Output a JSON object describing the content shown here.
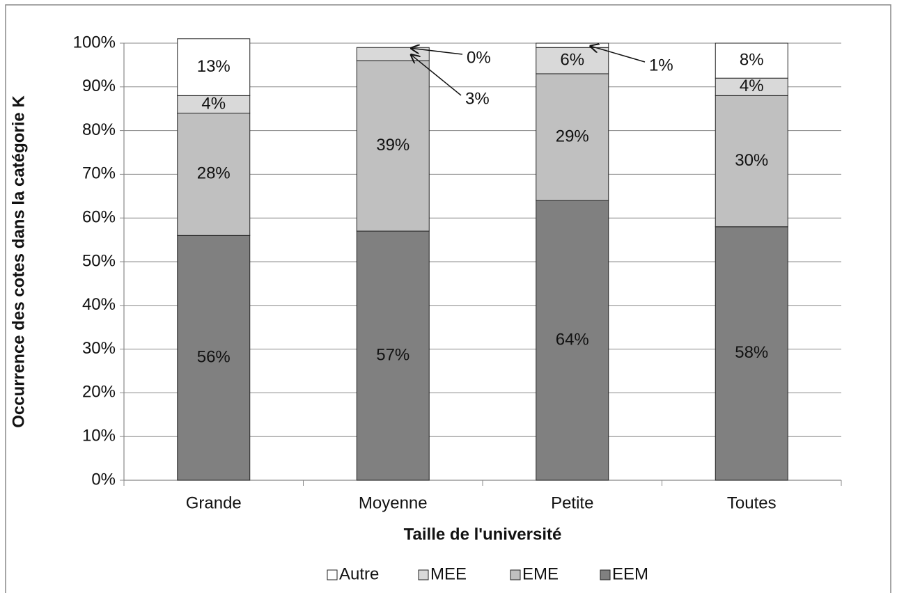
{
  "chart_data": {
    "type": "stacked_bar",
    "xlabel": "Taille de l'université",
    "ylabel": "Occurrence des cotes dans la catégorie K",
    "categories": [
      "Grande",
      "Moyenne",
      "Petite",
      "Toutes"
    ],
    "series": [
      {
        "name": "EEM",
        "color": "#808080",
        "values": [
          56,
          57,
          64,
          58
        ],
        "value_labels": [
          "56%",
          "57%",
          "64%",
          "58%"
        ]
      },
      {
        "name": "EME",
        "color": "#c0c0c0",
        "values": [
          28,
          39,
          29,
          30
        ],
        "value_labels": [
          "28%",
          "39%",
          "29%",
          "30%"
        ]
      },
      {
        "name": "MEE",
        "color": "#d9d9d9",
        "values": [
          4,
          3,
          6,
          4
        ],
        "value_labels": [
          "4%",
          "3%",
          "6%",
          "4%"
        ]
      },
      {
        "name": "Autre",
        "color": "#ffffff",
        "values": [
          13,
          0,
          1,
          8
        ],
        "value_labels": [
          "13%",
          "0%",
          "1%",
          "8%"
        ]
      }
    ],
    "ylim": [
      0,
      100
    ],
    "yticks": [
      {
        "value": 0,
        "label": "0%"
      },
      {
        "value": 10,
        "label": "10%"
      },
      {
        "value": 20,
        "label": "20%"
      },
      {
        "value": 30,
        "label": "30%"
      },
      {
        "value": 40,
        "label": "40%"
      },
      {
        "value": 50,
        "label": "50%"
      },
      {
        "value": 60,
        "label": "60%"
      },
      {
        "value": 70,
        "label": "70%"
      },
      {
        "value": 80,
        "label": "80%"
      },
      {
        "value": 90,
        "label": "90%"
      },
      {
        "value": 100,
        "label": "100%"
      }
    ],
    "grid": true,
    "legend": "bottom"
  }
}
